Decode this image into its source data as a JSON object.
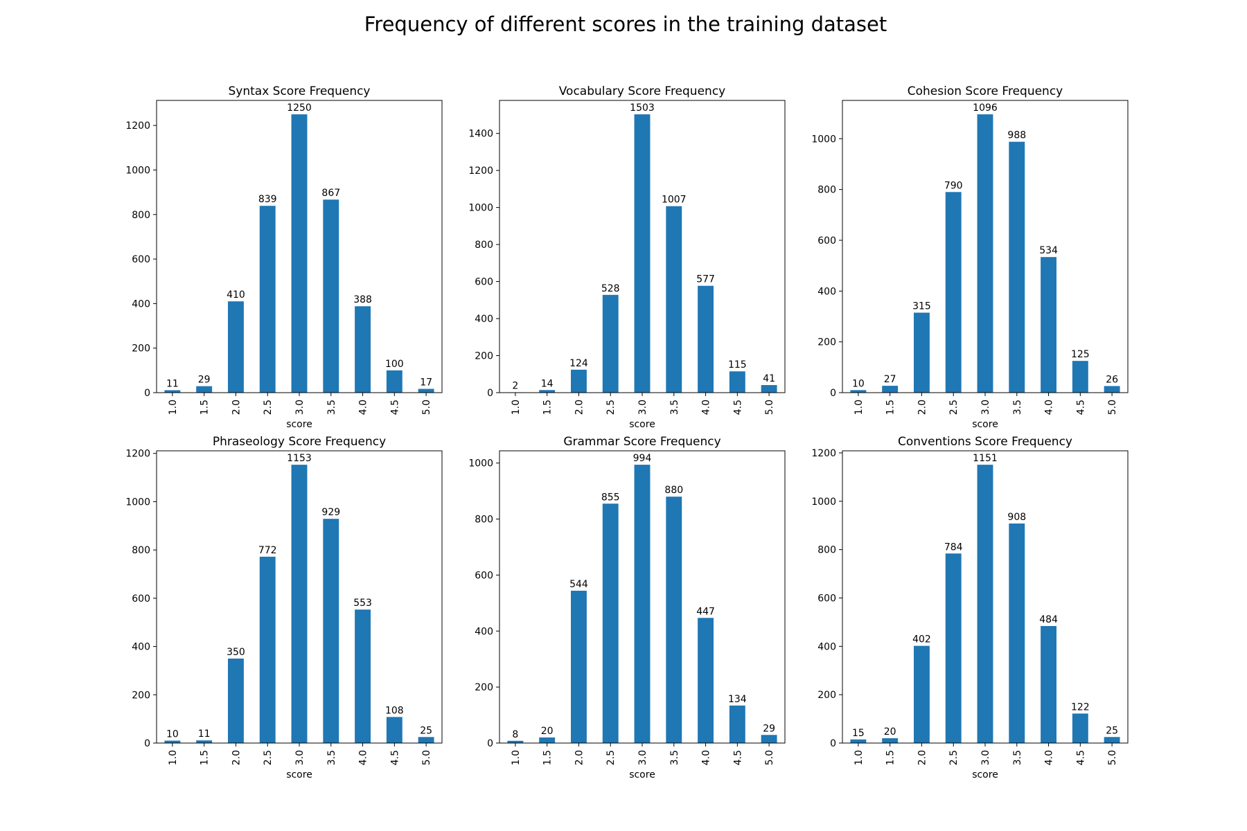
{
  "figure": {
    "title": "Frequency of different scores in the training dataset"
  },
  "chart_data": [
    {
      "type": "bar",
      "title": "Syntax Score Frequency",
      "xlabel": "score",
      "ylabel": "",
      "categories": [
        "1.0",
        "1.5",
        "2.0",
        "2.5",
        "3.0",
        "3.5",
        "4.0",
        "4.5",
        "5.0"
      ],
      "values": [
        11,
        29,
        410,
        839,
        1250,
        867,
        388,
        100,
        17
      ],
      "yticks": [
        0,
        200,
        400,
        600,
        800,
        1000,
        1200
      ],
      "ylim": [
        0,
        1312.5
      ],
      "color": "#1f77b4",
      "grid": false
    },
    {
      "type": "bar",
      "title": "Vocabulary Score Frequency",
      "xlabel": "score",
      "ylabel": "",
      "categories": [
        "1.0",
        "1.5",
        "2.0",
        "2.5",
        "3.0",
        "3.5",
        "4.0",
        "4.5",
        "5.0"
      ],
      "values": [
        2,
        14,
        124,
        528,
        1503,
        1007,
        577,
        115,
        41
      ],
      "yticks": [
        0,
        200,
        400,
        600,
        800,
        1000,
        1200,
        1400
      ],
      "ylim": [
        0,
        1578.2
      ],
      "color": "#1f77b4",
      "grid": false
    },
    {
      "type": "bar",
      "title": "Cohesion Score Frequency",
      "xlabel": "score",
      "ylabel": "",
      "categories": [
        "1.0",
        "1.5",
        "2.0",
        "2.5",
        "3.0",
        "3.5",
        "4.0",
        "4.5",
        "5.0"
      ],
      "values": [
        10,
        27,
        315,
        790,
        1096,
        988,
        534,
        125,
        26
      ],
      "yticks": [
        0,
        200,
        400,
        600,
        800,
        1000
      ],
      "ylim": [
        0,
        1150.8
      ],
      "color": "#1f77b4",
      "grid": false
    },
    {
      "type": "bar",
      "title": "Phraseology Score Frequency",
      "xlabel": "score",
      "ylabel": "",
      "categories": [
        "1.0",
        "1.5",
        "2.0",
        "2.5",
        "3.0",
        "3.5",
        "4.0",
        "4.5",
        "5.0"
      ],
      "values": [
        10,
        11,
        350,
        772,
        1153,
        929,
        553,
        108,
        25
      ],
      "yticks": [
        0,
        200,
        400,
        600,
        800,
        1000,
        1200
      ],
      "ylim": [
        0,
        1210.7
      ],
      "color": "#1f77b4",
      "grid": false
    },
    {
      "type": "bar",
      "title": "Grammar Score Frequency",
      "xlabel": "score",
      "ylabel": "",
      "categories": [
        "1.0",
        "1.5",
        "2.0",
        "2.5",
        "3.0",
        "3.5",
        "4.0",
        "4.5",
        "5.0"
      ],
      "values": [
        8,
        20,
        544,
        855,
        994,
        880,
        447,
        134,
        29
      ],
      "yticks": [
        0,
        200,
        400,
        600,
        800,
        1000
      ],
      "ylim": [
        0,
        1043.7
      ],
      "color": "#1f77b4",
      "grid": false
    },
    {
      "type": "bar",
      "title": "Conventions Score Frequency",
      "xlabel": "score",
      "ylabel": "",
      "categories": [
        "1.0",
        "1.5",
        "2.0",
        "2.5",
        "3.0",
        "3.5",
        "4.0",
        "4.5",
        "5.0"
      ],
      "values": [
        15,
        20,
        402,
        784,
        1151,
        908,
        484,
        122,
        25
      ],
      "yticks": [
        0,
        200,
        400,
        600,
        800,
        1000,
        1200
      ],
      "ylim": [
        0,
        1208.6
      ],
      "color": "#1f77b4",
      "grid": false
    }
  ]
}
